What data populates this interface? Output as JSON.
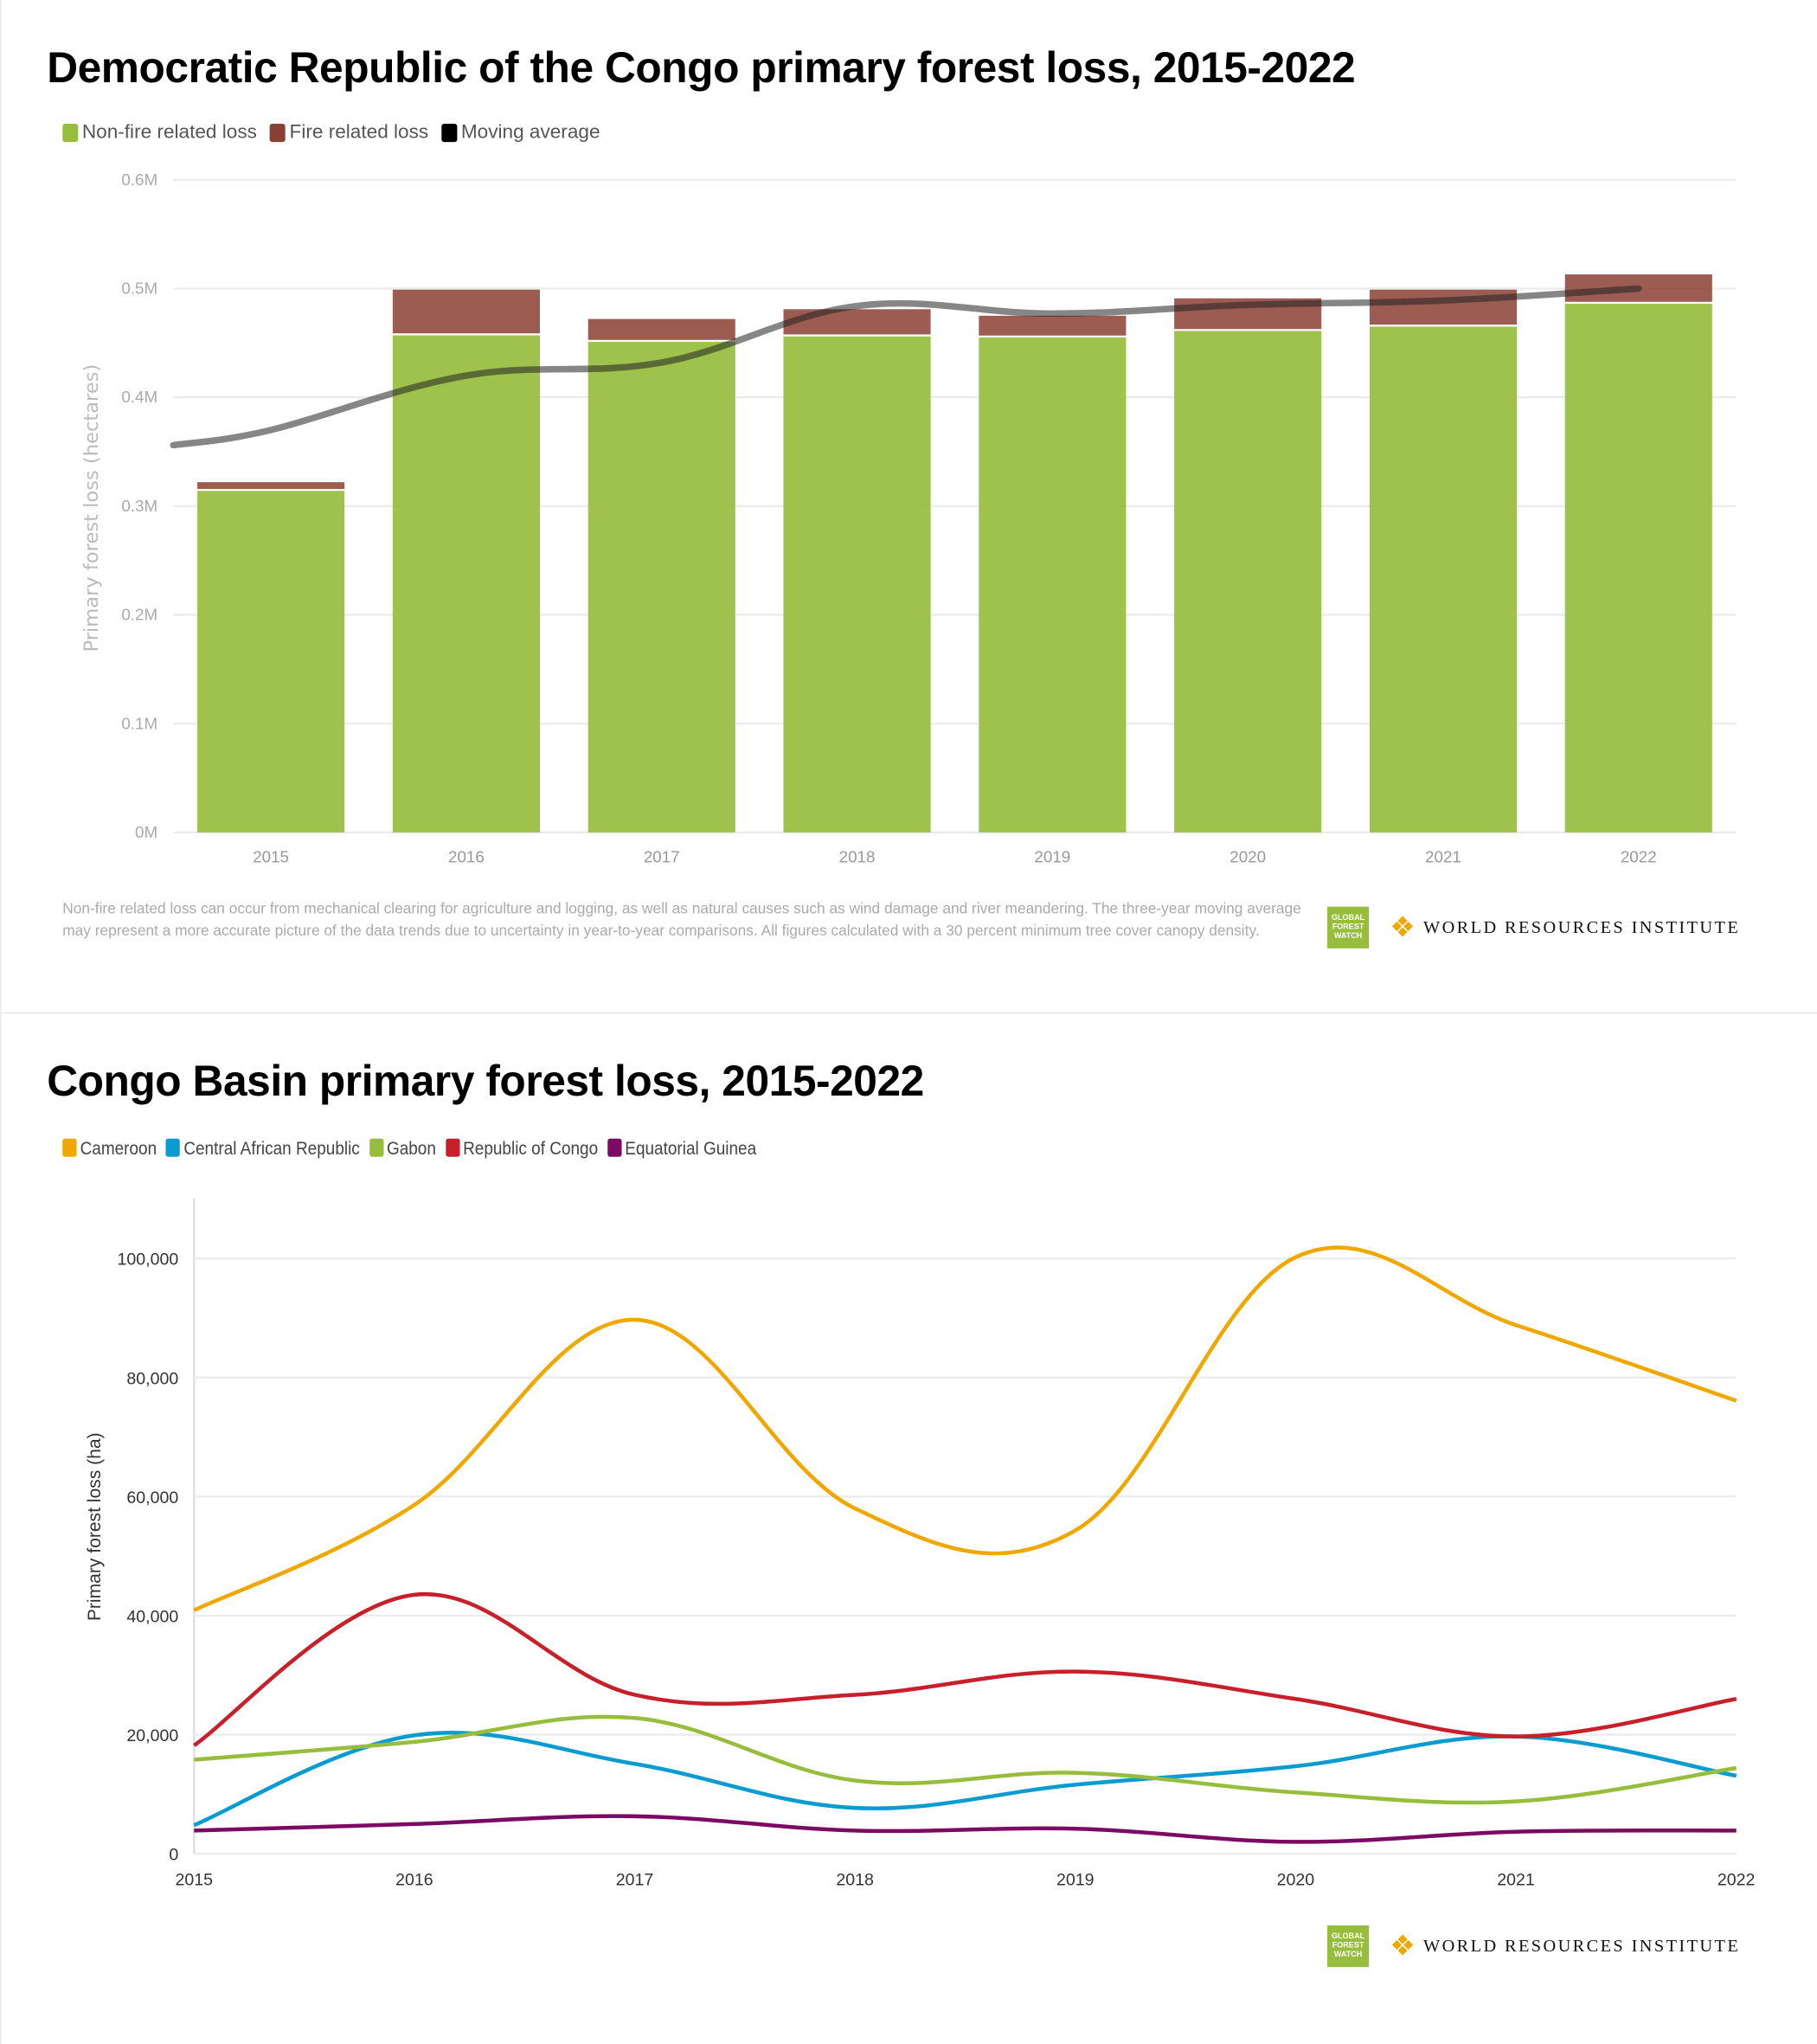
{
  "chart_data": [
    {
      "type": "bar",
      "stacked": true,
      "title": "Democratic Republic of the Congo primary forest loss, 2015-2022",
      "ylabel": "Primary forest loss (hectares)",
      "xlabel": "",
      "ylim": [
        0,
        600000
      ],
      "yticks": [
        "0M",
        "0.1M",
        "0.2M",
        "0.3M",
        "0.4M",
        "0.5M",
        "0.6M"
      ],
      "grid": true,
      "legend_position": "top-left",
      "categories": [
        "2015",
        "2016",
        "2017",
        "2018",
        "2019",
        "2020",
        "2021",
        "2022"
      ],
      "series": [
        {
          "name": "Non-fire related loss",
          "color": "#97bd3d",
          "values": [
            314000,
            457000,
            451000,
            456000,
            455000,
            461000,
            465000,
            486000
          ]
        },
        {
          "name": "Fire related loss",
          "color": "#8b4034",
          "values": [
            8000,
            42000,
            21000,
            25000,
            20000,
            30000,
            34000,
            27000
          ]
        }
      ],
      "line": {
        "name": "Moving average",
        "color": "#000000",
        "values": [
          370000,
          420000,
          432000,
          484000,
          477000,
          485000,
          489000,
          500000
        ]
      },
      "footnote": "Non-fire related loss can occur from mechanical clearing for agriculture and logging, as well as natural causes such as wind damage and river meandering. The three-year moving average may represent a more accurate picture of the data trends due to uncertainty in year-to-year comparisons. All figures calculated with a 30 percent minimum tree cover canopy density."
    },
    {
      "type": "line",
      "title": "Congo Basin primary forest loss, 2015-2022",
      "ylabel": "Primary forest loss (ha)",
      "xlabel": "",
      "ylim": [
        0,
        110000
      ],
      "yticks": [
        "0",
        "20,000",
        "40,000",
        "60,000",
        "80,000",
        "100,000"
      ],
      "grid": true,
      "legend_position": "top-left",
      "x": [
        "2015",
        "2016",
        "2017",
        "2018",
        "2019",
        "2020",
        "2021",
        "2022"
      ],
      "series": [
        {
          "name": "Cameroon",
          "color": "#f0a800",
          "values": [
            40900,
            58600,
            89700,
            58000,
            54300,
            100200,
            88800,
            76100
          ]
        },
        {
          "name": "Central African Republic",
          "color": "#0a9bd0",
          "values": [
            4800,
            19900,
            15100,
            7700,
            11600,
            14700,
            19700,
            13100
          ]
        },
        {
          "name": "Gabon",
          "color": "#97bd3d",
          "values": [
            15800,
            18800,
            22800,
            12300,
            13600,
            10300,
            8800,
            14400
          ]
        },
        {
          "name": "Republic of Congo",
          "color": "#c8202a",
          "values": [
            18200,
            43500,
            26700,
            26700,
            30600,
            26000,
            19700,
            26000
          ]
        },
        {
          "name": "Equatorial Guinea",
          "color": "#7a0a63",
          "values": [
            3900,
            5000,
            6300,
            3900,
            4200,
            2000,
            3700,
            3900
          ]
        }
      ]
    }
  ],
  "logos": {
    "gfw": "GLOBAL FOREST WATCH",
    "wri": "WORLD RESOURCES INSTITUTE"
  }
}
